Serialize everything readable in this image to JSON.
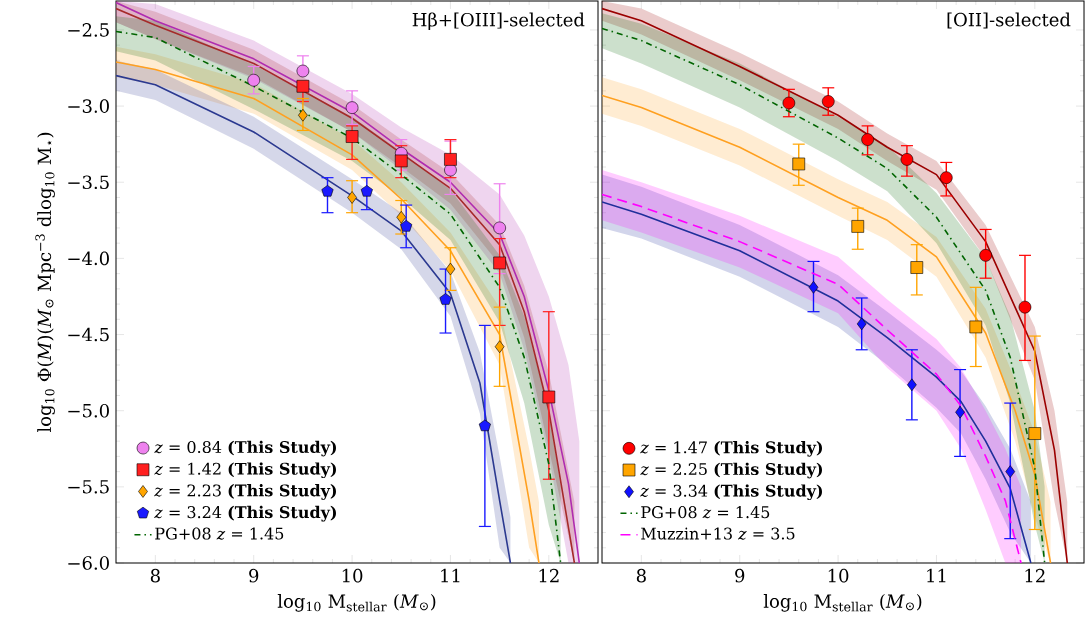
{
  "chart_data": [
    {
      "type": "line",
      "annotations": [
        "Hβ+[OIII]-selected"
      ],
      "xlabel": "log$_{10}$ M$_{stellar}$ (*M*$_{⊙}$)",
      "ylabel": "log$_{10}$ Φ(*M*)(*M*$_{⊙}$ Mpc$^{−3}$ dlog$_{10}$ M$_{⋆}$)",
      "xlim": [
        7.6,
        12.5
      ],
      "ylim": [
        -6.0,
        -2.31
      ],
      "xticks": [
        8,
        9,
        10,
        11,
        12
      ],
      "yticks": [
        {
          "value": -2.5,
          "label": "−2.5"
        },
        {
          "value": -3.0,
          "label": "−3.0"
        },
        {
          "value": -3.5,
          "label": "−3.5"
        },
        {
          "value": -4.0,
          "label": "−4.0"
        },
        {
          "value": -4.5,
          "label": "−4.5"
        },
        {
          "value": -5.0,
          "label": "−5.0"
        },
        {
          "value": -5.5,
          "label": "−5.5"
        },
        {
          "value": -6.0,
          "label": "−6.0"
        }
      ],
      "legend": "bottom left",
      "series": [
        {
          "color": "#b02cb0",
          "line_style": "solid",
          "x": [
            7.6,
            8,
            9,
            10,
            10.5,
            11,
            11.5,
            11.75,
            12,
            12.2,
            12.31
          ],
          "values": [
            -2.32,
            -2.44,
            -2.69,
            -3.04,
            -3.28,
            -3.5,
            -3.84,
            -4.25,
            -4.87,
            -5.48,
            -6.0
          ],
          "lower": [
            -2.45,
            -2.56,
            -2.82,
            -3.17,
            -3.42,
            -3.68,
            -4.1,
            -4.6,
            -5.3,
            -6.0,
            -6.0
          ],
          "upper": [
            -2.31,
            -2.33,
            -2.57,
            -2.92,
            -3.14,
            -3.32,
            -3.58,
            -3.85,
            -4.25,
            -4.7,
            -5.2
          ]
        },
        {
          "color": "#a52a2a",
          "line_style": "solid",
          "x": [
            7.6,
            8,
            9,
            10,
            10.5,
            11,
            11.5,
            11.75,
            12,
            12.26
          ],
          "values": [
            -2.36,
            -2.47,
            -2.72,
            -3.08,
            -3.31,
            -3.54,
            -3.91,
            -4.35,
            -5.0,
            -6.0
          ],
          "lower": [
            -2.45,
            -2.56,
            -2.81,
            -3.17,
            -3.4,
            -3.64,
            -4.04,
            -4.52,
            -5.25,
            -6.0
          ],
          "upper": [
            -2.31,
            -2.38,
            -2.63,
            -2.99,
            -3.22,
            -3.44,
            -3.78,
            -4.18,
            -4.75,
            -5.6
          ]
        },
        {
          "color": "#ffa020",
          "line_style": "solid",
          "x": [
            7.6,
            8,
            9,
            10,
            10.5,
            11,
            11.5,
            11.8,
            11.9
          ],
          "values": [
            -2.71,
            -2.76,
            -2.95,
            -3.32,
            -3.61,
            -3.95,
            -4.5,
            -5.59,
            -6.0
          ],
          "lower": [
            -2.81,
            -2.86,
            -3.05,
            -3.42,
            -3.72,
            -4.08,
            -4.7,
            -5.9,
            -6.0
          ],
          "upper": [
            -2.61,
            -2.66,
            -2.85,
            -3.22,
            -3.5,
            -3.83,
            -4.32,
            -5.25,
            -5.6
          ]
        },
        {
          "color": "#2b3990",
          "line_style": "solid",
          "x": [
            7.6,
            8,
            9,
            10,
            10.5,
            11,
            11.3,
            11.5,
            11.61
          ],
          "values": [
            -2.8,
            -2.86,
            -3.17,
            -3.59,
            -3.82,
            -4.23,
            -4.82,
            -5.59,
            -6.0
          ],
          "lower": [
            -2.9,
            -2.96,
            -3.28,
            -3.7,
            -3.94,
            -4.38,
            -5.02,
            -5.9,
            -6.0
          ],
          "upper": [
            -2.7,
            -2.76,
            -3.07,
            -3.48,
            -3.7,
            -4.09,
            -4.62,
            -5.3,
            -5.7
          ]
        },
        {
          "type": "scatter",
          "name": "*z* = 0.84 **(This Study)**",
          "color": "#ee82ee",
          "marker": "circle",
          "x": [
            9.0,
            9.5,
            10.0,
            10.5,
            11.0,
            11.5
          ],
          "values": [
            -2.83,
            -2.77,
            -3.01,
            -3.31,
            -3.42,
            -3.8
          ],
          "errors": [
            [
              -2.92,
              -2.74
            ],
            [
              -2.77,
              -2.67
            ],
            [
              -3.12,
              -2.9
            ],
            [
              -3.42,
              -3.22
            ],
            [
              -3.58,
              -3.23
            ],
            [
              -4.1,
              -3.51
            ]
          ]
        },
        {
          "type": "scatter",
          "name": "*z* = 1.42 **(This Study)**",
          "color": "#ff2020",
          "marker": "square",
          "x": [
            9.5,
            10.0,
            10.5,
            11.0,
            11.5,
            12.0
          ],
          "values": [
            -2.87,
            -3.2,
            -3.36,
            -3.35,
            -4.03,
            -4.91
          ],
          "errors": [
            [
              -2.97,
              -2.87
            ],
            [
              -3.35,
              -3.13
            ],
            [
              -3.47,
              -3.26
            ],
            [
              -3.47,
              -3.22
            ],
            [
              -4.44,
              -3.87
            ],
            [
              -5.45,
              -4.35
            ]
          ]
        },
        {
          "type": "scatter",
          "name": "*z* = 2.23 **(This Study)**",
          "color": "#ffa500",
          "marker": "diamond",
          "x": [
            9.5,
            10.0,
            10.5,
            11.0,
            11.5
          ],
          "values": [
            -3.06,
            -3.6,
            -3.73,
            -4.07,
            -4.58
          ],
          "errors": [
            [
              -3.16,
              -2.95
            ],
            [
              -3.7,
              -3.49
            ],
            [
              -3.84,
              -3.62
            ],
            [
              -4.21,
              -3.93
            ],
            [
              -4.84,
              -4.32
            ]
          ]
        },
        {
          "type": "scatter",
          "name": "*z* = 3.24 **(This Study)**",
          "color": "#1a1aff",
          "x": [
            9.75,
            10.15,
            10.55,
            10.95,
            11.35
          ],
          "values": [
            -3.56,
            -3.56,
            -3.79,
            -4.27,
            -5.1
          ],
          "errors": [
            [
              -3.7,
              -3.47
            ],
            [
              -3.68,
              -3.47
            ],
            [
              -3.93,
              -3.65
            ],
            [
              -4.49,
              -4.07
            ],
            [
              -5.76,
              -4.44
            ]
          ]
        },
        {
          "name": "PG+08 *z* = 1.45",
          "color": "#006400",
          "line_style": "dashdot",
          "x": [
            7.6,
            8,
            9,
            10,
            10.5,
            11,
            11.5,
            11.75,
            12,
            12.12
          ],
          "values": [
            -2.51,
            -2.55,
            -2.87,
            -3.21,
            -3.45,
            -3.71,
            -4.19,
            -4.65,
            -5.35,
            -6.0
          ],
          "lower": [
            -2.64,
            -2.7,
            -3.02,
            -3.36,
            -3.6,
            -3.88,
            -4.42,
            -4.95,
            -5.75,
            -6.0
          ],
          "upper": [
            -2.41,
            -2.44,
            -2.73,
            -3.07,
            -3.3,
            -3.55,
            -3.98,
            -4.38,
            -5.0,
            -5.5
          ]
        }
      ]
    },
    {
      "type": "line",
      "annotations": [
        "[OII]-selected"
      ],
      "xlabel": "log$_{10}$ M$_{stellar}$ (*M*$_{⊙}$)",
      "xlim": [
        7.6,
        12.5
      ],
      "ylim": [
        -6.0,
        -2.31
      ],
      "xticks": [
        8,
        9,
        10,
        11,
        12
      ],
      "yticks": [
        {
          "value": -2.5,
          "label": null
        },
        {
          "value": -3.0,
          "label": null
        },
        {
          "value": -3.5,
          "label": null
        },
        {
          "value": -4.0,
          "label": null
        },
        {
          "value": -4.5,
          "label": null
        },
        {
          "value": -5.0,
          "label": null
        },
        {
          "value": -5.5,
          "label": null
        },
        {
          "value": -6.0,
          "label": null
        }
      ],
      "tick_labels": "x",
      "legend": "bottom left",
      "series": [
        {
          "color": "#9b0000",
          "line_style": "solid",
          "x": [
            7.6,
            8,
            9,
            10,
            10.5,
            11,
            11.5,
            12,
            12.2,
            12.33
          ],
          "values": [
            -2.36,
            -2.44,
            -2.74,
            -3.06,
            -3.27,
            -3.45,
            -3.89,
            -4.61,
            -5.26,
            -6.0
          ],
          "lower": [
            -2.44,
            -2.53,
            -2.83,
            -3.15,
            -3.36,
            -3.55,
            -4.0,
            -4.8,
            -5.6,
            -6.0
          ],
          "upper": [
            -2.31,
            -2.36,
            -2.65,
            -2.97,
            -3.18,
            -3.36,
            -3.78,
            -4.45,
            -5.0,
            -5.6
          ]
        },
        {
          "color": "#ffa020",
          "line_style": "solid",
          "x": [
            7.6,
            8,
            9,
            10,
            10.5,
            11,
            11.5,
            11.8,
            12,
            12.16
          ],
          "values": [
            -2.93,
            -3.01,
            -3.27,
            -3.6,
            -3.75,
            -3.99,
            -4.49,
            -5.0,
            -5.42,
            -6.0
          ],
          "lower": [
            -3.05,
            -3.13,
            -3.39,
            -3.72,
            -3.88,
            -4.12,
            -4.65,
            -5.2,
            -5.7,
            -6.0
          ],
          "upper": [
            -2.81,
            -2.89,
            -3.15,
            -3.48,
            -3.63,
            -3.86,
            -4.33,
            -4.8,
            -5.15,
            -5.6
          ]
        },
        {
          "color": "#1f2f9a",
          "line_style": "solid",
          "x": [
            7.6,
            8,
            9,
            10,
            10.5,
            11,
            11.25,
            11.5,
            11.75,
            11.96
          ],
          "values": [
            -3.63,
            -3.71,
            -3.95,
            -4.28,
            -4.52,
            -4.78,
            -4.94,
            -5.2,
            -5.51,
            -6.0
          ],
          "lower": [
            -3.8,
            -3.87,
            -4.12,
            -4.45,
            -4.7,
            -4.98,
            -5.15,
            -5.45,
            -5.8,
            -6.0
          ],
          "upper": [
            -3.45,
            -3.53,
            -3.78,
            -4.11,
            -4.35,
            -4.6,
            -4.74,
            -4.97,
            -5.25,
            -5.6
          ]
        },
        {
          "type": "scatter",
          "name": "*z* = 1.47 **(This Study)**",
          "color": "#ff0000",
          "marker": "circle",
          "x": [
            9.5,
            9.9,
            10.3,
            10.7,
            11.1,
            11.5,
            11.9
          ],
          "values": [
            -2.98,
            -2.97,
            -3.22,
            -3.35,
            -3.47,
            -3.98,
            -4.32
          ],
          "errors": [
            [
              -3.07,
              -2.89
            ],
            [
              -3.06,
              -2.88
            ],
            [
              -3.32,
              -3.13
            ],
            [
              -3.46,
              -3.26
            ],
            [
              -3.59,
              -3.37
            ],
            [
              -4.13,
              -3.81
            ],
            [
              -4.67,
              -3.98
            ]
          ]
        },
        {
          "type": "scatter",
          "name": "*z* = 2.25 **(This Study)**",
          "color": "#ffa500",
          "marker": "square",
          "x": [
            9.6,
            10.2,
            10.8,
            11.4,
            12.0
          ],
          "values": [
            -3.38,
            -3.79,
            -4.06,
            -4.45,
            -5.15
          ],
          "errors": [
            [
              -3.52,
              -3.25
            ],
            [
              -3.94,
              -3.67
            ],
            [
              -4.24,
              -3.91
            ],
            [
              -4.71,
              -4.19
            ],
            [
              -5.78,
              -4.51
            ]
          ]
        },
        {
          "type": "scatter",
          "name": "*z* = 3.34 **(This Study)**",
          "color": "#1010ff",
          "marker": "diamond",
          "x": [
            9.75,
            10.24,
            10.75,
            11.24,
            11.75
          ],
          "values": [
            -4.19,
            -4.43,
            -4.83,
            -5.01,
            -5.4
          ],
          "errors": [
            [
              -4.35,
              -4.02
            ],
            [
              -4.6,
              -4.26
            ],
            [
              -5.06,
              -4.6
            ],
            [
              -5.3,
              -4.73
            ],
            [
              -5.84,
              -4.95
            ]
          ]
        },
        {
          "name": "PG+08 *z* = 1.45",
          "color": "#006400",
          "line_style": "dashdot",
          "x": [
            7.6,
            8,
            9,
            10,
            10.5,
            11,
            11.5,
            11.75,
            12,
            12.1
          ],
          "values": [
            -2.49,
            -2.57,
            -2.86,
            -3.21,
            -3.41,
            -3.73,
            -4.21,
            -4.65,
            -5.38,
            -6.0
          ],
          "lower": [
            -2.62,
            -2.72,
            -3.01,
            -3.36,
            -3.56,
            -3.9,
            -4.44,
            -4.95,
            -5.75,
            -6.0
          ],
          "upper": [
            -2.39,
            -2.46,
            -2.72,
            -3.07,
            -3.26,
            -3.57,
            -4.0,
            -4.38,
            -5.0,
            -5.5
          ]
        },
        {
          "name": "Muzzin+13 *z* = 3.5",
          "color": "#ff00ff",
          "line_style": "dashed",
          "x": [
            7.6,
            8,
            9,
            10,
            10.5,
            11,
            11.25,
            11.5,
            11.7,
            11.86
          ],
          "values": [
            -3.58,
            -3.66,
            -3.89,
            -4.17,
            -4.47,
            -4.76,
            -4.97,
            -5.3,
            -5.59,
            -6.0
          ],
          "lower": [
            -3.75,
            -3.83,
            -4.06,
            -4.36,
            -4.72,
            -5.0,
            -5.25,
            -5.65,
            -6.0,
            -6.0
          ],
          "upper": [
            -3.42,
            -3.5,
            -3.72,
            -3.99,
            -4.27,
            -4.53,
            -4.72,
            -5.0,
            -5.25,
            -5.5
          ]
        }
      ]
    }
  ]
}
